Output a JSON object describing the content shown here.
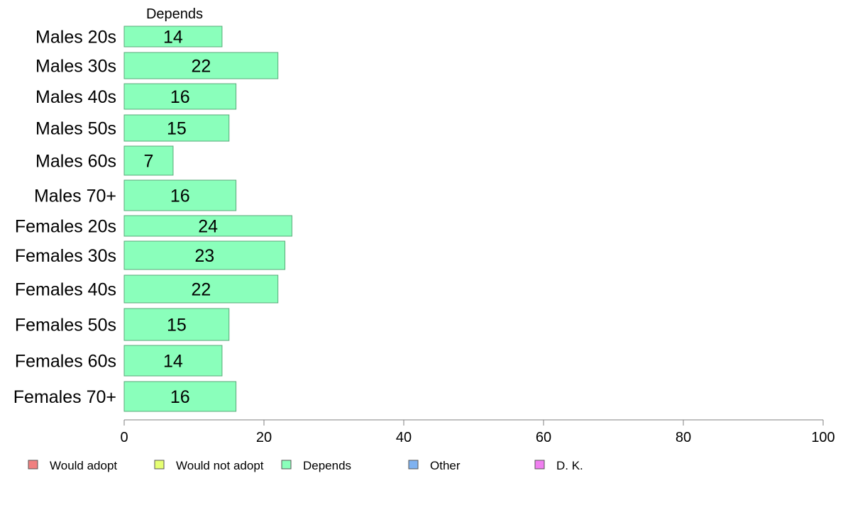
{
  "chart_data": {
    "type": "bar",
    "orientation": "horizontal",
    "categories": [
      "Males 20s",
      "Males 30s",
      "Males 40s",
      "Males 50s",
      "Males 60s",
      "Males 70+",
      "Females 20s",
      "Females 30s",
      "Females 40s",
      "Females 50s",
      "Females 60s",
      "Females 70+"
    ],
    "series": [
      {
        "name": "Depends",
        "color": "#8affbb",
        "values": [
          14,
          22,
          16,
          15,
          7,
          16,
          24,
          23,
          22,
          15,
          14,
          16
        ],
        "labels": [
          "14",
          "22",
          "16",
          "15",
          "7",
          "16",
          "24",
          "23",
          "22",
          "15",
          "14",
          "16"
        ]
      }
    ],
    "series_title": "Depends",
    "xlim": [
      0,
      100
    ],
    "xticks": [
      0,
      20,
      40,
      60,
      80,
      100
    ],
    "grid": false,
    "legend": {
      "placement": "bottom",
      "items": [
        {
          "label": "Would adopt",
          "color": "#f08080"
        },
        {
          "label": "Would not adopt",
          "color": "#e6ff73"
        },
        {
          "label": "Depends",
          "color": "#8affbb"
        },
        {
          "label": "Other",
          "color": "#7fb2f0"
        },
        {
          "label": "D. K.",
          "color": "#f07ff0"
        }
      ]
    }
  }
}
